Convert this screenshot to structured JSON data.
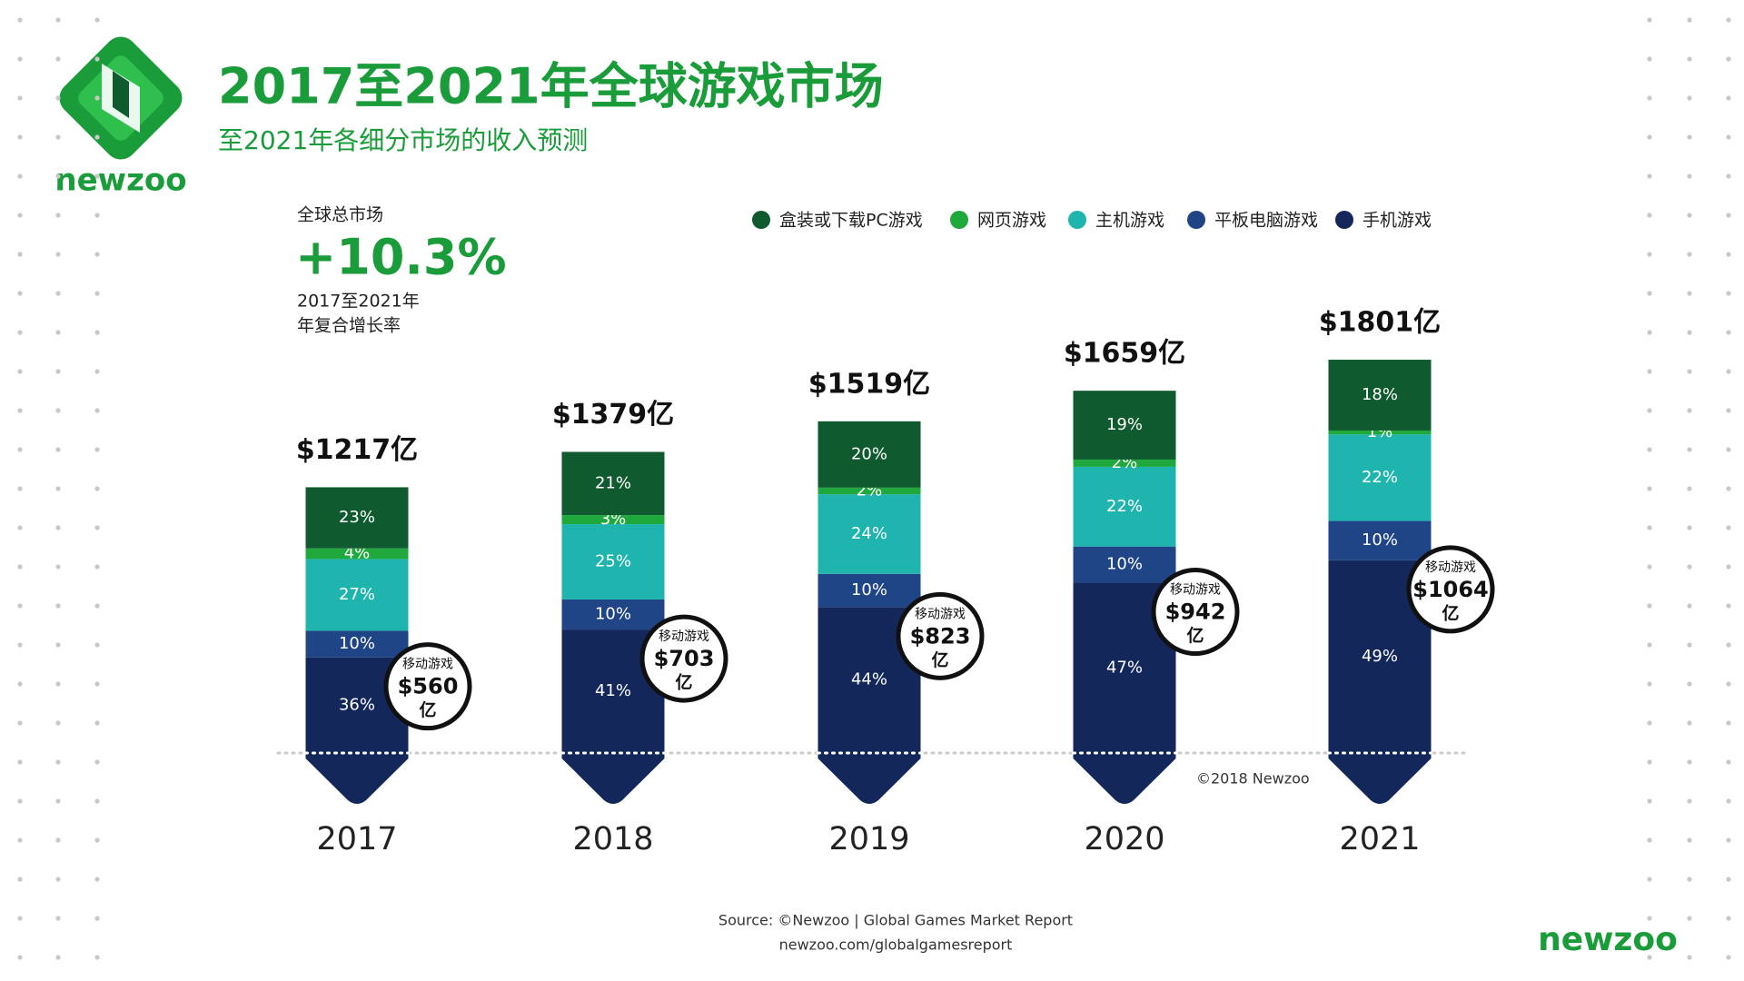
{
  "logo": "newzoo",
  "chart_data": {
    "type": "bar",
    "title": "2017至2021年全球游戏市场",
    "subtitle": "至2021年各细分市场的收入预测",
    "categories": [
      "2017",
      "2018",
      "2019",
      "2020",
      "2021"
    ],
    "series": [
      {
        "name": "盒装或下载PC游戏",
        "color": "#0f5a2e",
        "values": [
          23,
          21,
          20,
          19,
          18
        ],
        "value_labels": [
          "23%",
          "21%",
          "20%",
          "19%",
          "18%"
        ]
      },
      {
        "name": "网页游戏",
        "color": "#1fa83c",
        "values": [
          4,
          3,
          2,
          2,
          1
        ],
        "value_labels": [
          "4%",
          "3%",
          "2%",
          "2%",
          "1%"
        ]
      },
      {
        "name": "主机游戏",
        "color": "#1fb5ae",
        "values": [
          27,
          25,
          24,
          22,
          22
        ],
        "value_labels": [
          "27%",
          "25%",
          "24%",
          "22%",
          "22%"
        ]
      },
      {
        "name": "平板电脑游戏",
        "color": "#1f4586",
        "values": [
          10,
          10,
          10,
          10,
          10
        ],
        "value_labels": [
          "10%",
          "10%",
          "10%",
          "10%",
          "10%"
        ]
      },
      {
        "name": "手机游戏",
        "color": "#14275b",
        "values": [
          36,
          41,
          44,
          47,
          49
        ],
        "value_labels": [
          "36%",
          "41%",
          "44%",
          "47%",
          "49%"
        ]
      }
    ],
    "totals": {
      "values": [
        1217,
        1379,
        1519,
        1659,
        1801
      ],
      "value_labels": [
        "$1217亿",
        "$1379亿",
        "$1519亿",
        "$1659亿",
        "$1801亿"
      ]
    },
    "mobile_revenue": {
      "label": "移动游戏",
      "values": [
        560,
        703,
        823,
        942,
        1064
      ],
      "value_labels": [
        "$560",
        "$703",
        "$823",
        "$942",
        "$1064"
      ],
      "unit": "亿"
    },
    "cagr": {
      "heading": "全球总市场",
      "label": "+10.3%",
      "period": "2017至2021年",
      "description": "年复合增长率"
    },
    "copyright": "©2018 Newzoo"
  },
  "source": "Source: ©Newzoo | Global Games Market Report",
  "url": "newzoo.com/globalgamesreport",
  "footer_logo": "newzoo"
}
